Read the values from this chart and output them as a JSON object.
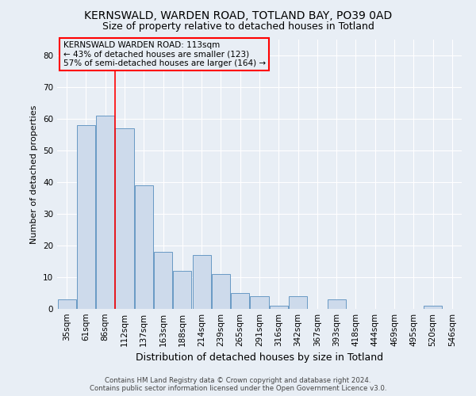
{
  "title1": "KERNSWALD, WARDEN ROAD, TOTLAND BAY, PO39 0AD",
  "title2": "Size of property relative to detached houses in Totland",
  "xlabel": "Distribution of detached houses by size in Totland",
  "ylabel": "Number of detached properties",
  "footer1": "Contains HM Land Registry data © Crown copyright and database right 2024.",
  "footer2": "Contains public sector information licensed under the Open Government Licence v3.0.",
  "categories": [
    "35sqm",
    "61sqm",
    "86sqm",
    "112sqm",
    "137sqm",
    "163sqm",
    "188sqm",
    "214sqm",
    "239sqm",
    "265sqm",
    "291sqm",
    "316sqm",
    "342sqm",
    "367sqm",
    "393sqm",
    "418sqm",
    "444sqm",
    "469sqm",
    "495sqm",
    "520sqm",
    "546sqm"
  ],
  "values": [
    3,
    58,
    61,
    57,
    39,
    18,
    12,
    17,
    11,
    5,
    4,
    1,
    4,
    0,
    3,
    0,
    0,
    0,
    0,
    1,
    0
  ],
  "bar_color": "#cddaeb",
  "bar_edge_color": "#6899c4",
  "red_line_x": 2.5,
  "annotation_title": "KERNSWALD WARDEN ROAD: 113sqm",
  "annotation_line1": "← 43% of detached houses are smaller (123)",
  "annotation_line2": "57% of semi-detached houses are larger (164) →",
  "ylim": [
    0,
    85
  ],
  "yticks": [
    0,
    10,
    20,
    30,
    40,
    50,
    60,
    70,
    80
  ],
  "bg_color": "#e8eef5",
  "grid_color": "#ffffff",
  "title_fontsize": 10,
  "subtitle_fontsize": 9,
  "ylabel_fontsize": 8,
  "xlabel_fontsize": 9,
  "tick_fontsize": 7.5
}
